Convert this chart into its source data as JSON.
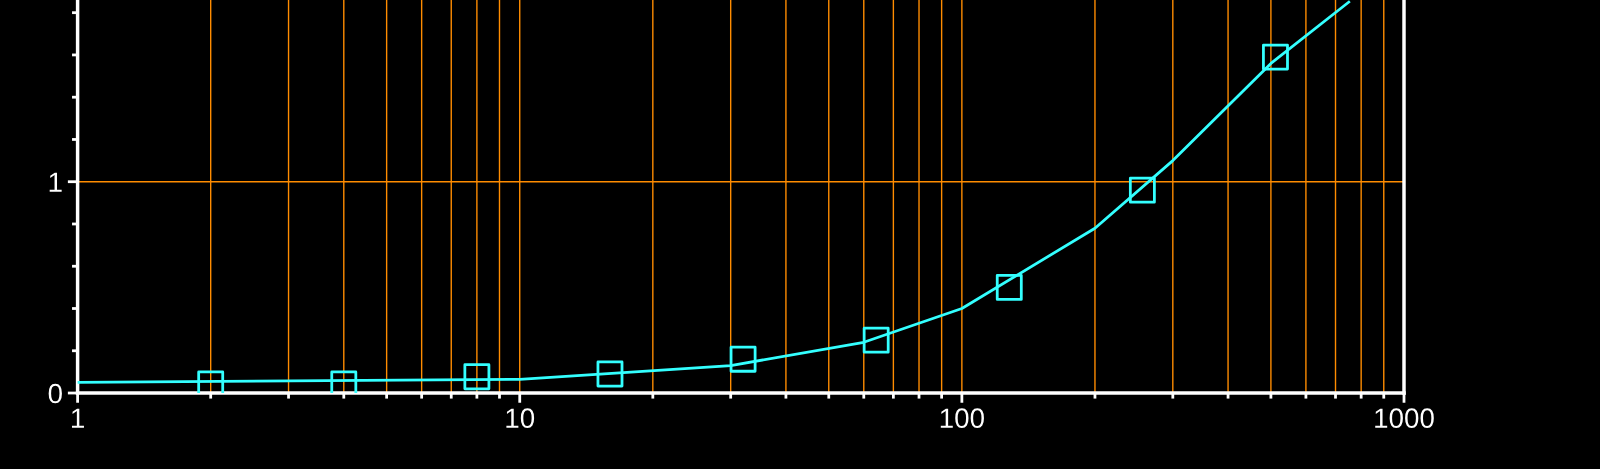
{
  "chart_data": {
    "type": "scatter",
    "log": "x",
    "grid": "x",
    "xlim": [
      1,
      1000
    ],
    "xticks": [
      1,
      {
        "value": 2,
        "label": null
      },
      {
        "value": 3,
        "label": null
      },
      {
        "value": 4,
        "label": null
      },
      {
        "value": 5,
        "label": null
      },
      {
        "value": 6,
        "label": null
      },
      {
        "value": 7,
        "label": null
      },
      {
        "value": 8,
        "label": null
      },
      {
        "value": 9,
        "label": null
      },
      10,
      {
        "value": 20,
        "label": null
      },
      {
        "value": 30,
        "label": null
      },
      {
        "value": 40,
        "label": null
      },
      {
        "value": 50,
        "label": null
      },
      {
        "value": 60,
        "label": null
      },
      {
        "value": 70,
        "label": null
      },
      {
        "value": 80,
        "label": null
      },
      {
        "value": 90,
        "label": null
      },
      100,
      {
        "value": 200,
        "label": null
      },
      {
        "value": 300,
        "label": null
      },
      {
        "value": 400,
        "label": null
      },
      {
        "value": 500,
        "label": null
      },
      {
        "value": 600,
        "label": null
      },
      {
        "value": 700,
        "label": null
      },
      {
        "value": 800,
        "label": null
      },
      {
        "value": 900,
        "label": null
      },
      1000
    ],
    "ylim": [
      0,
      1.86
    ],
    "yticks": [
      0,
      {
        "value": 0.2,
        "label": null
      },
      {
        "value": 0.4,
        "label": null
      },
      {
        "value": 0.6,
        "label": null
      },
      {
        "value": 0.8,
        "label": null
      },
      1,
      {
        "value": 1.2,
        "label": null
      },
      {
        "value": 1.4,
        "label": null
      },
      {
        "value": 1.6,
        "label": null
      },
      {
        "value": 1.8,
        "label": null
      }
    ],
    "ref_lines": [
      {
        "axis": "y",
        "value": 1,
        "color": "#ff8c00"
      }
    ],
    "series": [
      {
        "type": "line",
        "color": "#33ffff",
        "marker": "none",
        "line_style": "solid",
        "x": [
          1,
          10,
          30,
          60,
          100,
          200,
          300,
          500,
          750
        ],
        "values": [
          0.05,
          0.065,
          0.13,
          0.24,
          0.4,
          0.78,
          1.1,
          1.56,
          1.85
        ]
      },
      {
        "color": "#33ffff",
        "marker": "square",
        "x": [
          2,
          4,
          8,
          16,
          32,
          64,
          128,
          256,
          512
        ],
        "values": [
          0.043,
          0.043,
          0.077,
          0.09,
          0.16,
          0.25,
          0.5,
          0.96,
          1.59
        ]
      }
    ]
  }
}
